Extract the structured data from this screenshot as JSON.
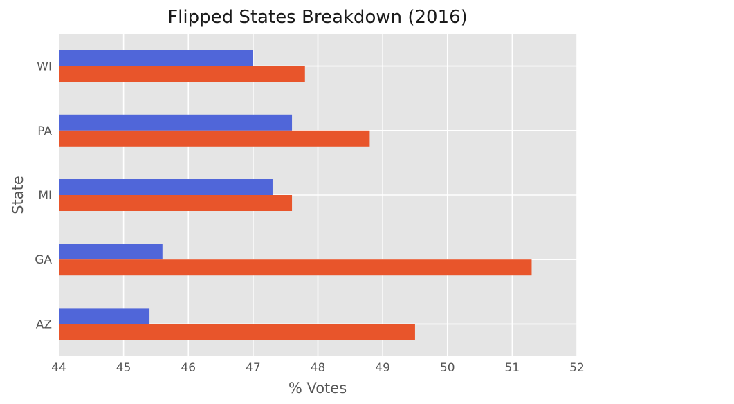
{
  "chart_data": {
    "type": "bar",
    "orientation": "horizontal",
    "title": "Flipped States Breakdown (2016)",
    "xlabel": "% Votes",
    "ylabel": "State",
    "categories": [
      "AZ",
      "GA",
      "MI",
      "PA",
      "WI"
    ],
    "xlim": [
      44,
      52
    ],
    "xticks": [
      "44",
      "45",
      "46",
      "47",
      "48",
      "49",
      "50",
      "51",
      "52"
    ],
    "grid": true,
    "legend": "none",
    "series": [
      {
        "color": "#5066d9",
        "values": [
          45.4,
          45.6,
          47.3,
          47.6,
          47.0
        ]
      },
      {
        "color": "#e8552b",
        "values": [
          49.5,
          51.3,
          47.6,
          48.8,
          47.8
        ]
      }
    ]
  }
}
